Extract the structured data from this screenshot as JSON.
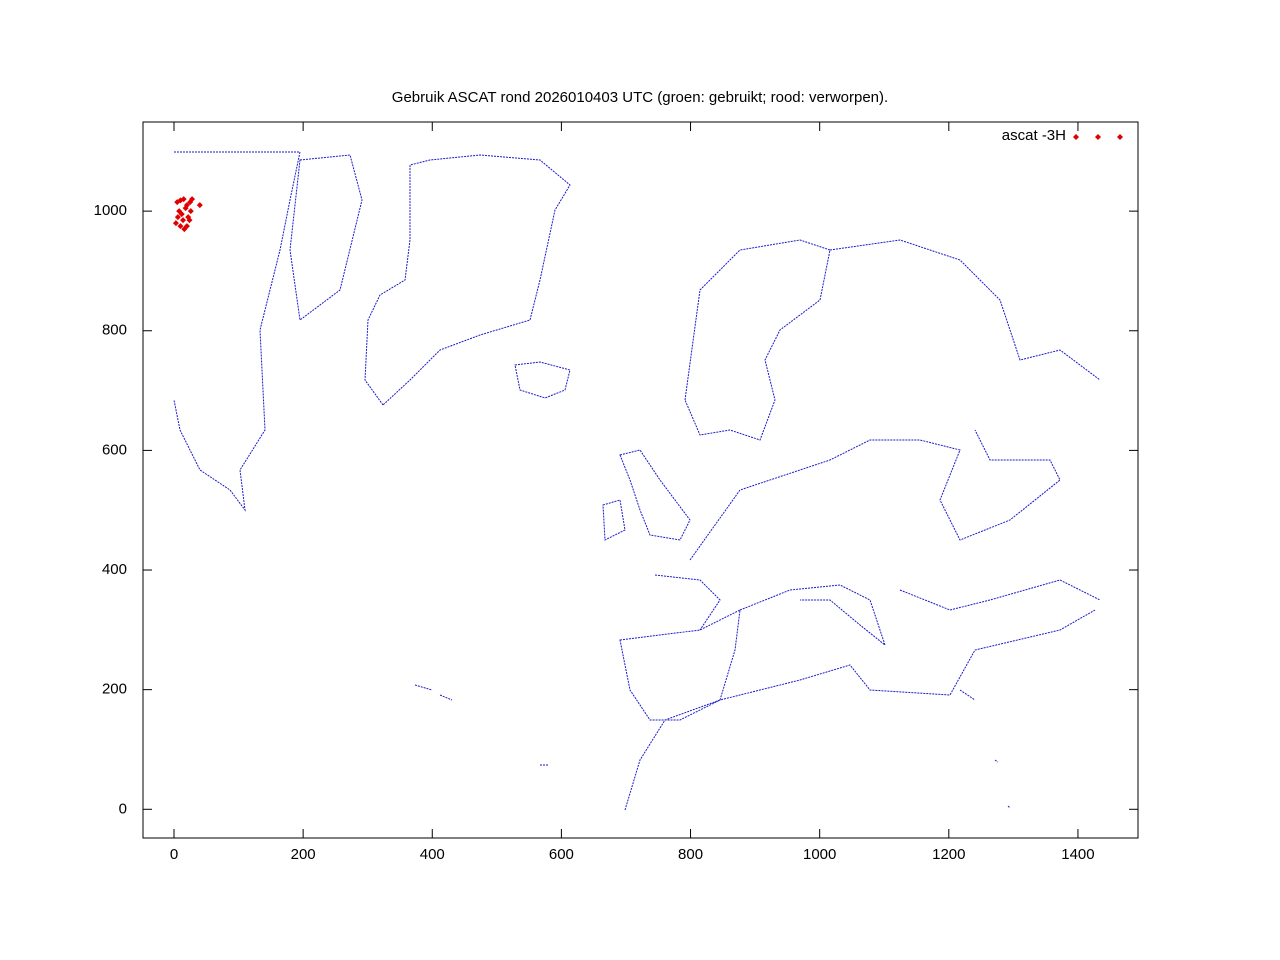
{
  "chart_data": {
    "type": "scatter",
    "title": "Gebruik ASCAT rond 2026010403 UTC (groen: gebruikt; rood: verworpen).",
    "xlim": [
      -48,
      1493
    ],
    "ylim": [
      -48,
      1149
    ],
    "xticks": [
      0,
      200,
      400,
      600,
      800,
      1000,
      1200,
      1400
    ],
    "yticks": [
      0,
      200,
      400,
      600,
      800,
      1000
    ],
    "legend": "top-right",
    "series": [
      {
        "name": "ascat -3H",
        "color": "#e00000",
        "x": [
          5,
          10,
          15,
          20,
          25,
          28,
          8,
          12,
          18,
          22,
          26,
          3,
          14,
          20,
          24,
          16,
          10,
          6,
          40
        ],
        "y": [
          1015,
          1018,
          1020,
          1010,
          1015,
          1020,
          1000,
          995,
          1005,
          990,
          1000,
          980,
          985,
          975,
          985,
          970,
          975,
          990,
          1010
        ]
      }
    ]
  }
}
